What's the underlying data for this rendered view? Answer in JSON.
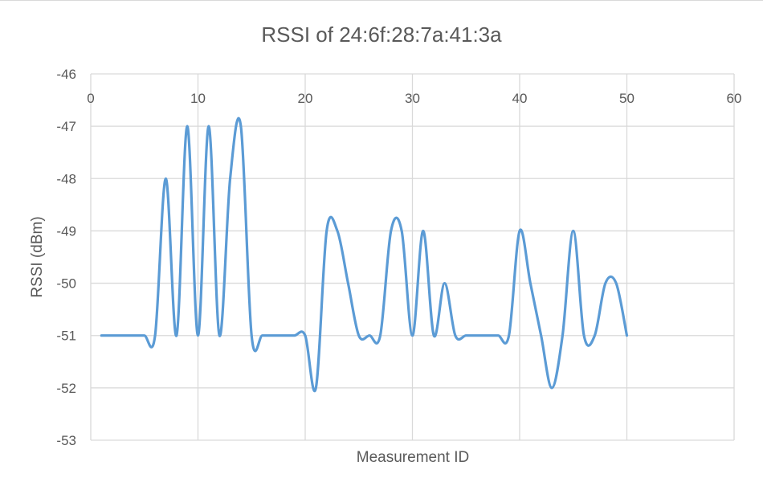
{
  "chart_data": {
    "type": "line",
    "title": "RSSI of 24:6f:28:7a:41:3a",
    "xlabel": "Measurement ID",
    "ylabel": "RSSI (dBm)",
    "xlim": [
      0,
      60
    ],
    "ylim": [
      -53,
      -46
    ],
    "xticks": [
      0,
      10,
      20,
      30,
      40,
      50,
      60
    ],
    "yticks": [
      -46,
      -47,
      -48,
      -49,
      -50,
      -51,
      -52,
      -53
    ],
    "x_axis_position": "top",
    "grid": true,
    "line_color": "#5b9bd5",
    "smoothed": true,
    "series": [
      {
        "x": [
          1,
          2,
          3,
          4,
          5,
          6,
          7,
          8,
          9,
          10,
          11,
          12,
          13,
          14,
          15,
          16,
          17,
          18,
          19,
          20,
          21,
          22,
          23,
          24,
          25,
          26,
          27,
          28,
          29,
          30,
          31,
          32,
          33,
          34,
          35,
          36,
          37,
          38,
          39,
          40,
          41,
          42,
          43,
          44,
          45,
          46,
          47,
          48,
          49,
          50
        ],
        "values": [
          -51,
          -51,
          -51,
          -51,
          -51,
          -51,
          -48,
          -51,
          -47,
          -51,
          -47,
          -51,
          -48,
          -47,
          -51,
          -51,
          -51,
          -51,
          -51,
          -51,
          -52,
          -49,
          -49,
          -50,
          -51,
          -51,
          -51,
          -49,
          -49,
          -51,
          -49,
          -51,
          -50,
          -51,
          -51,
          -51,
          -51,
          -51,
          -51,
          -49,
          -50,
          -51,
          -52,
          -51,
          -49,
          -51,
          -51,
          -50,
          -50,
          -51
        ]
      }
    ]
  }
}
